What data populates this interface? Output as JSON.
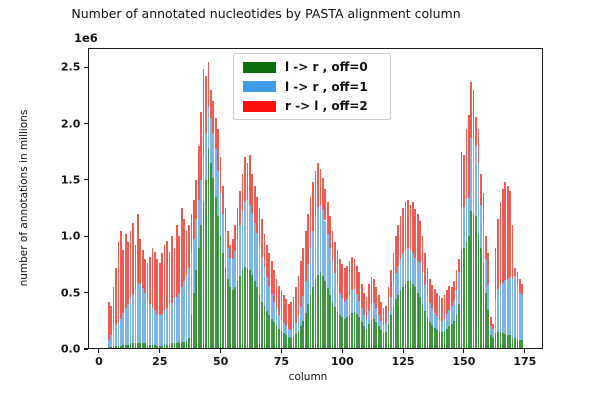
{
  "title": "Number of annotated nucleotides by PASTA alignment column",
  "chart_data": {
    "type": "bar",
    "stacked": true,
    "title": "Number of annotated nucleotides by PASTA alignment column",
    "xlabel": "column",
    "ylabel": "number of annotations in millions",
    "offset_text": "1e6",
    "units": "1e6 annotations",
    "xlim": [
      -4.5,
      182.5
    ],
    "ylim": [
      0,
      2.67
    ],
    "xticks": [
      0,
      25,
      50,
      75,
      100,
      125,
      150,
      175
    ],
    "yticks": [
      "0.0",
      "0.5",
      "1.0",
      "1.5",
      "2.0",
      "2.5"
    ],
    "grid": false,
    "legend_position": "upper-center-left",
    "bar_width": 0.8,
    "x_start": 4,
    "legend": [
      {
        "label": "l -> r , off=0",
        "swatch_color": "#0e6f0e",
        "bar_color": "#3f943f"
      },
      {
        "label": "l -> r , off=1",
        "swatch_color": "#409ce8",
        "bar_color": "#7cb6e8"
      },
      {
        "label": "r -> l , off=2",
        "swatch_color": "#fb100e",
        "bar_color": "#f05a51"
      }
    ],
    "series": [
      {
        "name": "l -> r , off=0",
        "values": [
          0.02,
          0.02,
          0.02,
          0.03,
          0.03,
          0.03,
          0.04,
          0.04,
          0.04,
          0.05,
          0.05,
          0.05,
          0.05,
          0.05,
          0.05,
          0.05,
          0.04,
          0.04,
          0.04,
          0.04,
          0.03,
          0.03,
          0.03,
          0.04,
          0.04,
          0.04,
          0.05,
          0.05,
          0.05,
          0.06,
          0.06,
          0.06,
          0.07,
          0.1,
          0.3,
          0.5,
          0.7,
          0.9,
          1.1,
          1.3,
          1.5,
          1.78,
          1.65,
          1.52,
          1.35,
          1.18,
          1.0,
          0.85,
          0.72,
          0.62,
          0.55,
          0.52,
          0.55,
          0.6,
          0.65,
          0.7,
          0.73,
          0.72,
          0.7,
          0.66,
          0.6,
          0.55,
          0.48,
          0.42,
          0.38,
          0.34,
          0.3,
          0.27,
          0.24,
          0.21,
          0.18,
          0.16,
          0.14,
          0.12,
          0.11,
          0.1,
          0.11,
          0.13,
          0.16,
          0.2,
          0.25,
          0.32,
          0.4,
          0.48,
          0.55,
          0.62,
          0.66,
          0.68,
          0.65,
          0.6,
          0.54,
          0.48,
          0.42,
          0.37,
          0.33,
          0.3,
          0.28,
          0.27,
          0.28,
          0.3,
          0.32,
          0.33,
          0.31,
          0.28,
          0.24,
          0.2,
          0.18,
          0.22,
          0.26,
          0.27,
          0.24,
          0.2,
          0.17,
          0.14,
          0.15,
          0.22,
          0.3,
          0.38,
          0.44,
          0.48,
          0.52,
          0.55,
          0.58,
          0.6,
          0.6,
          0.58,
          0.55,
          0.5,
          0.46,
          0.4,
          0.34,
          0.28,
          0.24,
          0.21,
          0.19,
          0.17,
          0.16,
          0.15,
          0.16,
          0.18,
          0.2,
          0.22,
          0.25,
          0.3,
          0.4,
          0.88,
          0.9,
          0.95,
          1.0,
          1.22,
          1.2,
          1.18,
          1.02,
          0.9,
          0.76,
          0.5,
          0.35,
          0.12,
          0.1,
          0.14,
          0.15,
          0.15,
          0.14,
          0.13,
          0.12,
          0.12,
          0.1,
          0.1,
          0.09,
          0.08,
          0.08
        ]
      },
      {
        "name": "l -> r , off=1",
        "values": [
          0.06,
          0.1,
          0.15,
          0.18,
          0.2,
          0.24,
          0.28,
          0.32,
          0.36,
          0.4,
          0.44,
          0.48,
          0.54,
          0.53,
          0.49,
          0.45,
          0.4,
          0.36,
          0.32,
          0.31,
          0.28,
          0.27,
          0.28,
          0.31,
          0.32,
          0.36,
          0.36,
          0.4,
          0.41,
          0.44,
          0.49,
          0.54,
          0.58,
          0.62,
          0.55,
          0.48,
          0.45,
          0.42,
          0.4,
          0.42,
          0.42,
          0.37,
          0.4,
          0.4,
          0.42,
          0.4,
          0.38,
          0.35,
          0.32,
          0.28,
          0.26,
          0.28,
          0.32,
          0.38,
          0.45,
          0.52,
          0.58,
          0.6,
          0.58,
          0.55,
          0.52,
          0.48,
          0.44,
          0.4,
          0.35,
          0.3,
          0.26,
          0.22,
          0.18,
          0.15,
          0.12,
          0.1,
          0.09,
          0.08,
          0.07,
          0.07,
          0.08,
          0.1,
          0.13,
          0.17,
          0.22,
          0.28,
          0.35,
          0.42,
          0.5,
          0.56,
          0.6,
          0.6,
          0.58,
          0.54,
          0.48,
          0.42,
          0.36,
          0.3,
          0.25,
          0.2,
          0.17,
          0.15,
          0.16,
          0.18,
          0.2,
          0.2,
          0.18,
          0.15,
          0.12,
          0.1,
          0.09,
          0.12,
          0.14,
          0.14,
          0.12,
          0.1,
          0.08,
          0.07,
          0.08,
          0.12,
          0.16,
          0.2,
          0.23,
          0.26,
          0.28,
          0.3,
          0.3,
          0.3,
          0.28,
          0.27,
          0.26,
          0.28,
          0.3,
          0.27,
          0.23,
          0.2,
          0.17,
          0.15,
          0.13,
          0.12,
          0.11,
          0.1,
          0.11,
          0.13,
          0.15,
          0.16,
          0.18,
          0.22,
          0.28,
          0.38,
          0.36,
          0.38,
          0.34,
          0.65,
          0.68,
          0.62,
          0.62,
          0.38,
          0.36,
          0.3,
          0.22,
          0.08,
          0.08,
          0.3,
          0.38,
          0.42,
          0.45,
          0.48,
          0.5,
          0.52,
          0.52,
          0.55,
          0.48,
          0.42,
          0.4
        ]
      },
      {
        "name": "r -> l , off=2",
        "values": [
          0.34,
          0.26,
          0.38,
          0.51,
          0.72,
          0.78,
          0.56,
          0.66,
          0.55,
          0.6,
          0.63,
          0.39,
          0.61,
          0.4,
          0.34,
          0.3,
          0.32,
          0.42,
          0.54,
          0.51,
          0.49,
          0.46,
          0.54,
          0.57,
          0.6,
          0.46,
          0.59,
          0.45,
          0.64,
          0.5,
          0.7,
          0.55,
          0.4,
          0.38,
          0.35,
          0.34,
          0.35,
          0.48,
          0.6,
          0.76,
          0.5,
          0.4,
          0.25,
          0.28,
          0.28,
          0.37,
          0.32,
          0.25,
          0.21,
          0.15,
          0.11,
          0.18,
          0.23,
          0.27,
          0.3,
          0.33,
          0.39,
          0.33,
          0.44,
          0.34,
          0.33,
          0.32,
          0.33,
          0.33,
          0.29,
          0.28,
          0.29,
          0.29,
          0.28,
          0.26,
          0.26,
          0.26,
          0.25,
          0.24,
          0.22,
          0.25,
          0.27,
          0.32,
          0.36,
          0.41,
          0.43,
          0.45,
          0.45,
          0.45,
          0.43,
          0.4,
          0.39,
          0.32,
          0.29,
          0.28,
          0.28,
          0.28,
          0.27,
          0.28,
          0.3,
          0.3,
          0.3,
          0.3,
          0.3,
          0.3,
          0.3,
          0.27,
          0.25,
          0.25,
          0.22,
          0.2,
          0.19,
          0.24,
          0.24,
          0.21,
          0.19,
          0.18,
          0.17,
          0.15,
          0.15,
          0.21,
          0.24,
          0.27,
          0.33,
          0.36,
          0.38,
          0.4,
          0.42,
          0.42,
          0.4,
          0.45,
          0.43,
          0.42,
          0.38,
          0.33,
          0.28,
          0.24,
          0.21,
          0.21,
          0.21,
          0.21,
          0.2,
          0.2,
          0.21,
          0.21,
          0.21,
          0.17,
          0.17,
          0.18,
          0.12,
          0.49,
          0.46,
          0.62,
          0.74,
          0.5,
          0.42,
          0.26,
          0.31,
          0.27,
          0.26,
          0.2,
          0.28,
          0.08,
          0.04,
          0.46,
          0.62,
          0.73,
          0.83,
          0.87,
          0.83,
          0.76,
          0.48,
          0.07,
          0.11,
          0.12,
          0.1
        ]
      }
    ]
  }
}
